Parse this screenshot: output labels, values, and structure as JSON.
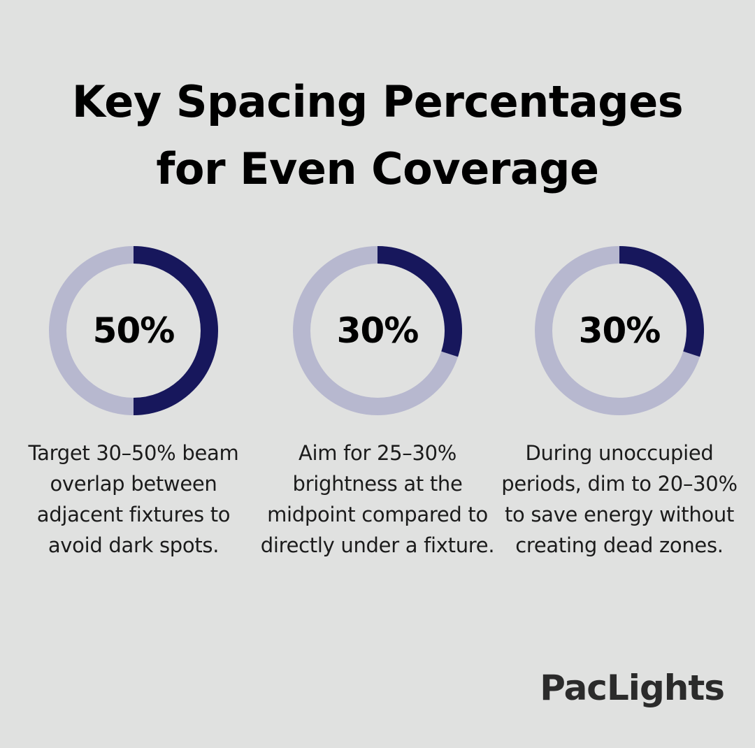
{
  "title_lines": [
    "Key Spacing Percentages",
    "for Even Coverage"
  ],
  "colors": {
    "background": "#e0e1e0",
    "ring_fill": "#17175c",
    "ring_track": "#b7b8cf",
    "text": "#000000"
  },
  "chart_data": [
    {
      "type": "pie",
      "style": "donut",
      "value": 50,
      "label": "50%",
      "description": "Target 30–50% beam overlap between adjacent fixtures to avoid dark spots."
    },
    {
      "type": "pie",
      "style": "donut",
      "value": 30,
      "label": "30%",
      "description": "Aim for 25–30% brightness at the midpoint compared to directly under a fixture."
    },
    {
      "type": "pie",
      "style": "donut",
      "value": 30,
      "label": "30%",
      "description": "During unoccupied periods, dim to 20–30% to save energy without creating dead zones."
    }
  ],
  "brand": "PacLights"
}
